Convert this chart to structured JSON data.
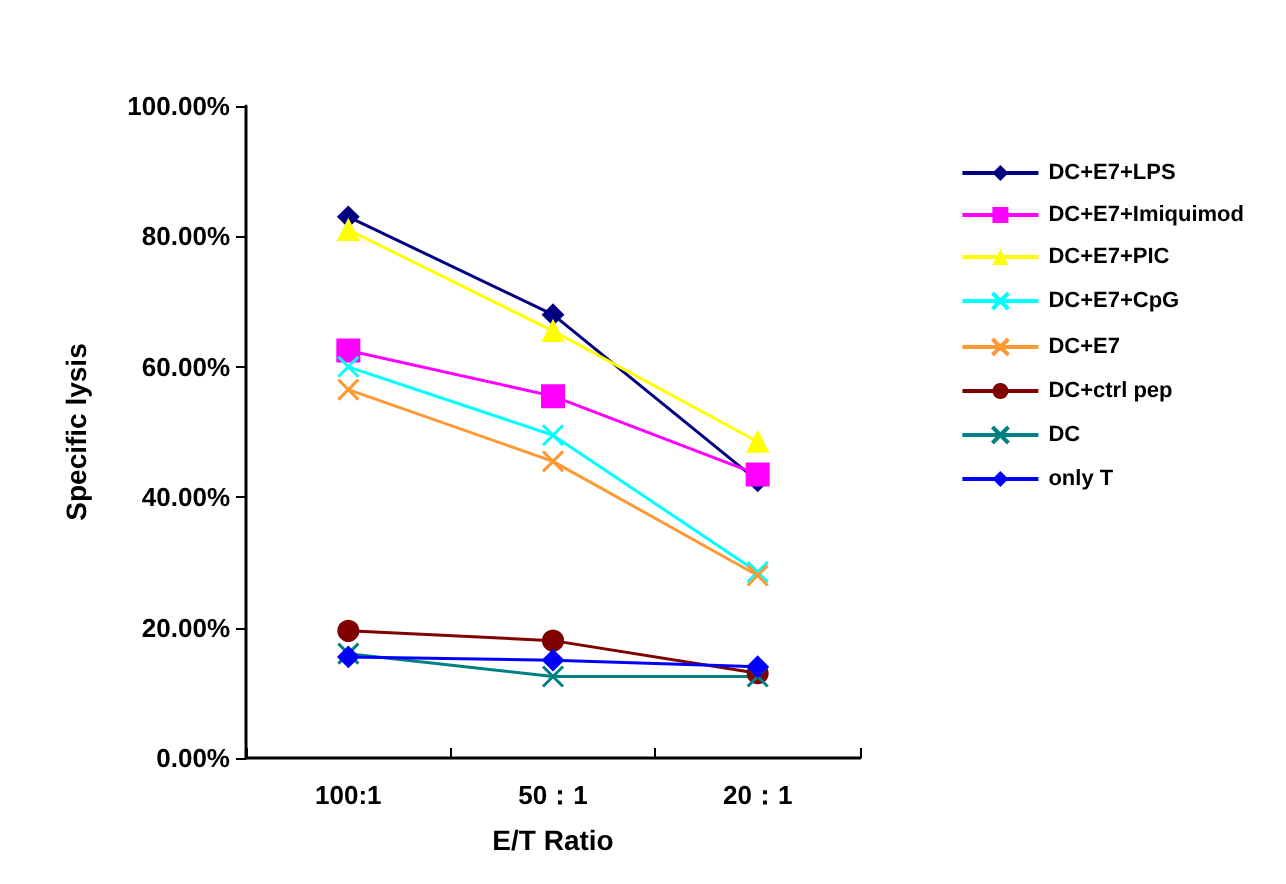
{
  "chart_data": {
    "type": "line",
    "xlabel": "E/T Ratio",
    "ylabel": "Specific lysis",
    "categories": [
      "100:1",
      "50：1",
      "20：1"
    ],
    "ylim": [
      0,
      100
    ],
    "yticks": [
      {
        "value": 0,
        "label": "0.00%"
      },
      {
        "value": 20,
        "label": "20.00%"
      },
      {
        "value": 40,
        "label": "40.00%"
      },
      {
        "value": 60,
        "label": "60.00%"
      },
      {
        "value": 80,
        "label": "80.00%"
      },
      {
        "value": 100,
        "label": "100.00%"
      }
    ],
    "grid": false,
    "legend": "right",
    "line_style": "solid",
    "series": [
      {
        "name": "DC+E7+LPS",
        "color": "#000080",
        "marker": "diamond",
        "values": [
          83,
          68,
          42.5
        ]
      },
      {
        "name": "DC+E7+Imiquimod",
        "color": "#ff00ff",
        "marker": "square",
        "values": [
          62.5,
          55.5,
          43.5
        ]
      },
      {
        "name": "DC+E7+PIC",
        "color": "#ffff00",
        "marker": "triangle",
        "values": [
          81,
          65.5,
          48.5
        ]
      },
      {
        "name": "DC+E7+CpG",
        "color": "#00ffff",
        "marker": "cross",
        "values": [
          60,
          49.5,
          28.5
        ]
      },
      {
        "name": "DC+E7",
        "color": "#ff9933",
        "marker": "cross",
        "values": [
          56.5,
          45.5,
          28
        ]
      },
      {
        "name": "DC+ctrl pep",
        "color": "#800000",
        "marker": "circle",
        "values": [
          19.5,
          18,
          13
        ]
      },
      {
        "name": "DC",
        "color": "#008080",
        "marker": "cross",
        "values": [
          16,
          12.5,
          12.5
        ]
      },
      {
        "name": "only T",
        "color": "#0000ff",
        "marker": "diamond",
        "values": [
          15.5,
          15,
          14
        ]
      }
    ]
  }
}
